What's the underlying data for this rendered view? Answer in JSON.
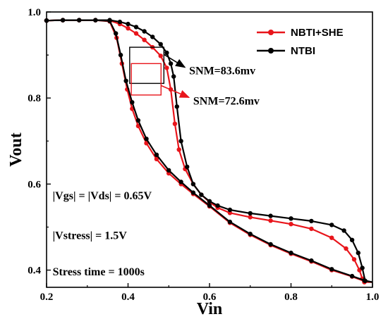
{
  "chart_data": {
    "type": "line",
    "xlabel": "Vin",
    "ylabel": "Vout",
    "xlim": [
      0.2,
      1.0
    ],
    "ylim": [
      0.36,
      1.0
    ],
    "xticks": [
      0.2,
      0.4,
      0.6,
      0.8,
      1.0
    ],
    "xtick_labels": [
      "0.2",
      "0.4",
      "0.6",
      "0.8",
      "1.0"
    ],
    "yticks": [
      0.4,
      0.6,
      0.8,
      1.0
    ],
    "ytick_labels": [
      "0.4",
      "0.6",
      "0.8",
      "1.0"
    ],
    "grid": false,
    "legend_position": "top-right",
    "series": [
      {
        "name": "NBTI+SHE",
        "color": "#e8151b",
        "curves": [
          [
            [
              0.2,
              0.98
            ],
            [
              0.24,
              0.981
            ],
            [
              0.28,
              0.981
            ],
            [
              0.32,
              0.981
            ],
            [
              0.355,
              0.98
            ],
            [
              0.38,
              0.972
            ],
            [
              0.4,
              0.962
            ],
            [
              0.42,
              0.95
            ],
            [
              0.44,
              0.935
            ],
            [
              0.46,
              0.918
            ],
            [
              0.48,
              0.898
            ],
            [
              0.495,
              0.87
            ],
            [
              0.505,
              0.82
            ],
            [
              0.515,
              0.74
            ],
            [
              0.525,
              0.68
            ],
            [
              0.54,
              0.635
            ],
            [
              0.56,
              0.6
            ],
            [
              0.58,
              0.575
            ],
            [
              0.6,
              0.558
            ],
            [
              0.62,
              0.545
            ],
            [
              0.65,
              0.533
            ],
            [
              0.7,
              0.523
            ],
            [
              0.75,
              0.515
            ],
            [
              0.8,
              0.507
            ],
            [
              0.85,
              0.496
            ],
            [
              0.9,
              0.475
            ],
            [
              0.935,
              0.45
            ],
            [
              0.955,
              0.425
            ],
            [
              0.968,
              0.4
            ],
            [
              0.975,
              0.38
            ],
            [
              0.98,
              0.372
            ],
            [
              1.0,
              0.372
            ]
          ],
          [
            [
              0.2,
              0.98
            ],
            [
              0.24,
              0.981
            ],
            [
              0.28,
              0.981
            ],
            [
              0.32,
              0.981
            ],
            [
              0.355,
              0.978
            ],
            [
              0.372,
              0.94
            ],
            [
              0.385,
              0.88
            ],
            [
              0.398,
              0.82
            ],
            [
              0.41,
              0.775
            ],
            [
              0.425,
              0.735
            ],
            [
              0.445,
              0.695
            ],
            [
              0.47,
              0.658
            ],
            [
              0.5,
              0.625
            ],
            [
              0.53,
              0.6
            ],
            [
              0.56,
              0.577
            ],
            [
              0.6,
              0.548
            ],
            [
              0.65,
              0.51
            ],
            [
              0.7,
              0.482
            ],
            [
              0.75,
              0.458
            ],
            [
              0.8,
              0.438
            ],
            [
              0.85,
              0.42
            ],
            [
              0.9,
              0.4
            ],
            [
              0.95,
              0.385
            ],
            [
              0.98,
              0.374
            ],
            [
              1.0,
              0.372
            ]
          ]
        ]
      },
      {
        "name": "NTBI",
        "color": "#000000",
        "curves": [
          [
            [
              0.2,
              0.98
            ],
            [
              0.24,
              0.981
            ],
            [
              0.28,
              0.981
            ],
            [
              0.32,
              0.981
            ],
            [
              0.355,
              0.981
            ],
            [
              0.38,
              0.977
            ],
            [
              0.4,
              0.972
            ],
            [
              0.42,
              0.965
            ],
            [
              0.44,
              0.955
            ],
            [
              0.46,
              0.942
            ],
            [
              0.48,
              0.925
            ],
            [
              0.495,
              0.905
            ],
            [
              0.505,
              0.88
            ],
            [
              0.512,
              0.85
            ],
            [
              0.52,
              0.78
            ],
            [
              0.53,
              0.7
            ],
            [
              0.545,
              0.64
            ],
            [
              0.56,
              0.6
            ],
            [
              0.58,
              0.575
            ],
            [
              0.6,
              0.56
            ],
            [
              0.62,
              0.55
            ],
            [
              0.65,
              0.54
            ],
            [
              0.7,
              0.532
            ],
            [
              0.75,
              0.526
            ],
            [
              0.8,
              0.52
            ],
            [
              0.85,
              0.514
            ],
            [
              0.9,
              0.505
            ],
            [
              0.93,
              0.492
            ],
            [
              0.95,
              0.47
            ],
            [
              0.965,
              0.44
            ],
            [
              0.975,
              0.405
            ],
            [
              0.982,
              0.375
            ],
            [
              1.0,
              0.372
            ]
          ],
          [
            [
              0.2,
              0.98
            ],
            [
              0.24,
              0.981
            ],
            [
              0.28,
              0.981
            ],
            [
              0.32,
              0.981
            ],
            [
              0.355,
              0.979
            ],
            [
              0.37,
              0.95
            ],
            [
              0.382,
              0.9
            ],
            [
              0.395,
              0.84
            ],
            [
              0.41,
              0.79
            ],
            [
              0.425,
              0.748
            ],
            [
              0.445,
              0.705
            ],
            [
              0.47,
              0.668
            ],
            [
              0.5,
              0.632
            ],
            [
              0.53,
              0.605
            ],
            [
              0.56,
              0.58
            ],
            [
              0.6,
              0.55
            ],
            [
              0.65,
              0.512
            ],
            [
              0.7,
              0.484
            ],
            [
              0.75,
              0.46
            ],
            [
              0.8,
              0.44
            ],
            [
              0.85,
              0.422
            ],
            [
              0.9,
              0.402
            ],
            [
              0.95,
              0.386
            ],
            [
              0.98,
              0.376
            ],
            [
              1.0,
              0.372
            ]
          ]
        ]
      }
    ],
    "annotations": [
      {
        "text": "SNM=83.6mv",
        "color": "#000000",
        "box": {
          "x0": 0.404,
          "x1": 0.488,
          "y0": 0.834,
          "y1": 0.918
        },
        "text_x": 0.55,
        "text_y": 0.855
      },
      {
        "text": "SNM=72.6mv",
        "color": "#e8151b",
        "box": {
          "x0": 0.408,
          "x1": 0.481,
          "y0": 0.807,
          "y1": 0.88
        },
        "text_x": 0.56,
        "text_y": 0.785
      },
      {
        "text": "|Vgs| = |Vds| = 0.65V",
        "text_x": 0.215,
        "text_y": 0.565
      },
      {
        "text": "|Vstress| = 1.5V",
        "text_x": 0.215,
        "text_y": 0.472
      },
      {
        "text": "Stress time = 1000s",
        "text_x": 0.215,
        "text_y": 0.388
      }
    ]
  }
}
